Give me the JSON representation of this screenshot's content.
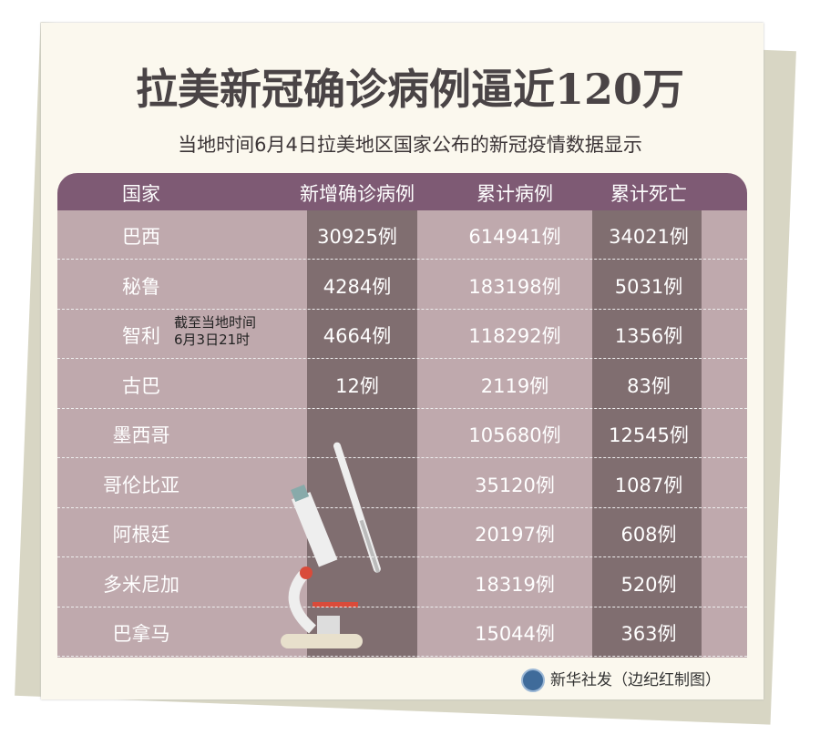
{
  "title": "拉美新冠确诊病例逼近120万",
  "subtitle": "当地时间6月4日拉美地区国家公布的新冠疫情数据显示",
  "credit": "新华社发（边纪红制图）",
  "colors": {
    "header": "#7e5a74",
    "row_bg": "#bfa9ad",
    "dark_column": "#806e70",
    "card": "#fbf8ee"
  },
  "chart_data": {
    "type": "table",
    "columns": [
      "国家",
      "新增确诊病例",
      "累计病例",
      "累计死亡"
    ],
    "rows": [
      [
        "巴西",
        "30925例",
        "614941例",
        "34021例"
      ],
      [
        "秘鲁",
        "4284例",
        "183198例",
        "5031例"
      ],
      [
        "智利",
        "4664例",
        "118292例",
        "1356例"
      ],
      [
        "古巴",
        "12例",
        "2119例",
        "83例"
      ],
      [
        "墨西哥",
        "",
        "105680例",
        "12545例"
      ],
      [
        "哥伦比亚",
        "",
        "35120例",
        "1087例"
      ],
      [
        "阿根廷",
        "",
        "20197例",
        "608例"
      ],
      [
        "多米尼加",
        "",
        "18319例",
        "520例"
      ],
      [
        "巴拿马",
        "",
        "15044例",
        "363例"
      ]
    ],
    "note": [
      "截至当地时间",
      "6月3日21时"
    ]
  }
}
